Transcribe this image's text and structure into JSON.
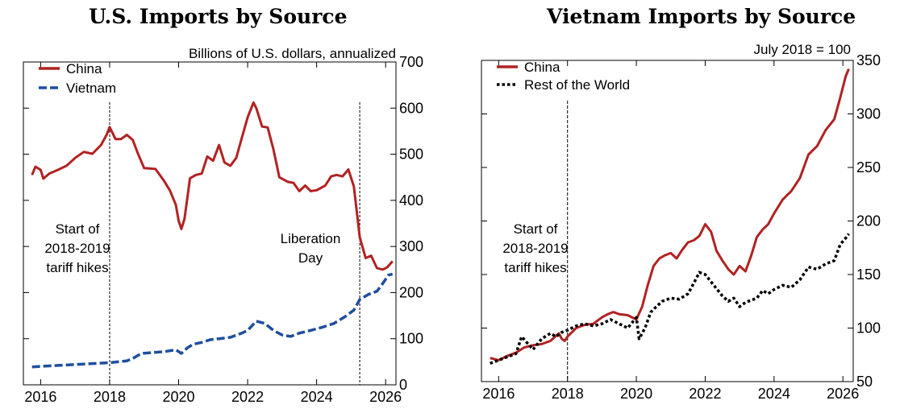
{
  "charts": {
    "left": {
      "title": "U.S. Imports by Source",
      "unit_label": "Billions of U.S. dollars, annualized",
      "legend": [
        {
          "label": "China",
          "color": "#b22222",
          "style": "solid"
        },
        {
          "label": "Vietnam",
          "color": "#1f4e9e",
          "style": "dashed"
        }
      ],
      "annotations": {
        "tariff_hikes": [
          "Start of",
          "2018-2019",
          "tariff hikes"
        ],
        "liberation_day": [
          "Liberation",
          "Day"
        ]
      }
    },
    "right": {
      "title": "Vietnam Imports by Source",
      "unit_label": "July 2018 = 100",
      "legend": [
        {
          "label": "China",
          "color": "#b22222",
          "style": "solid"
        },
        {
          "label": "Rest of the World",
          "color": "#000000",
          "style": "dotted"
        }
      ],
      "annotations": {
        "tariff_hikes": [
          "Start of",
          "2018-2019",
          "tariff hikes"
        ]
      }
    }
  },
  "chart_data": [
    {
      "type": "line",
      "title": "U.S. Imports by Source",
      "ylabel": "Billions of U.S. dollars, annualized",
      "xlim": [
        2015.5,
        2026.3
      ],
      "ylim": [
        0,
        700
      ],
      "x_ticks": [
        2016,
        2018,
        2020,
        2022,
        2024,
        2026
      ],
      "y_ticks": [
        0,
        100,
        200,
        300,
        400,
        500,
        600,
        700
      ],
      "y_axis_side": "right",
      "legend_position": "top-left",
      "grid": false,
      "vlines": [
        2018.0,
        2025.25
      ],
      "series": [
        {
          "name": "China",
          "color": "#b22222",
          "style": "solid",
          "points": [
            [
              2015.75,
              455
            ],
            [
              2015.85,
              473
            ],
            [
              2016.0,
              466
            ],
            [
              2016.08,
              447
            ],
            [
              2016.25,
              458
            ],
            [
              2016.5,
              466
            ],
            [
              2016.75,
              475
            ],
            [
              2017.0,
              492
            ],
            [
              2017.25,
              505
            ],
            [
              2017.5,
              501
            ],
            [
              2017.75,
              520
            ],
            [
              2017.92,
              543
            ],
            [
              2018.0,
              559
            ],
            [
              2018.17,
              533
            ],
            [
              2018.33,
              533
            ],
            [
              2018.5,
              542
            ],
            [
              2018.67,
              531
            ],
            [
              2018.83,
              500
            ],
            [
              2019.0,
              470
            ],
            [
              2019.33,
              468
            ],
            [
              2019.58,
              442
            ],
            [
              2019.75,
              421
            ],
            [
              2019.92,
              390
            ],
            [
              2020.0,
              356
            ],
            [
              2020.08,
              338
            ],
            [
              2020.17,
              360
            ],
            [
              2020.33,
              448
            ],
            [
              2020.5,
              455
            ],
            [
              2020.67,
              458
            ],
            [
              2020.83,
              495
            ],
            [
              2021.0,
              486
            ],
            [
              2021.17,
              520
            ],
            [
              2021.33,
              482
            ],
            [
              2021.5,
              475
            ],
            [
              2021.67,
              492
            ],
            [
              2021.83,
              535
            ],
            [
              2022.0,
              580
            ],
            [
              2022.17,
              612
            ],
            [
              2022.25,
              600
            ],
            [
              2022.42,
              560
            ],
            [
              2022.58,
              558
            ],
            [
              2022.75,
              510
            ],
            [
              2022.92,
              450
            ],
            [
              2023.17,
              440
            ],
            [
              2023.33,
              438
            ],
            [
              2023.5,
              420
            ],
            [
              2023.67,
              432
            ],
            [
              2023.83,
              420
            ],
            [
              2024.0,
              422
            ],
            [
              2024.25,
              432
            ],
            [
              2024.42,
              452
            ],
            [
              2024.58,
              455
            ],
            [
              2024.75,
              452
            ],
            [
              2024.92,
              467
            ],
            [
              2025.08,
              430
            ],
            [
              2025.25,
              320
            ],
            [
              2025.42,
              275
            ],
            [
              2025.58,
              280
            ],
            [
              2025.75,
              253
            ],
            [
              2025.92,
              250
            ],
            [
              2026.05,
              255
            ],
            [
              2026.2,
              268
            ]
          ]
        },
        {
          "name": "Vietnam",
          "color": "#1f4e9e",
          "style": "dashed",
          "points": [
            [
              2015.75,
              39
            ],
            [
              2016.0,
              40
            ],
            [
              2016.5,
              42
            ],
            [
              2017.0,
              44
            ],
            [
              2017.5,
              46
            ],
            [
              2018.0,
              48
            ],
            [
              2018.5,
              52
            ],
            [
              2018.67,
              57
            ],
            [
              2018.92,
              68
            ],
            [
              2019.25,
              70
            ],
            [
              2019.58,
              72
            ],
            [
              2019.92,
              76
            ],
            [
              2020.08,
              68
            ],
            [
              2020.25,
              80
            ],
            [
              2020.42,
              88
            ],
            [
              2020.67,
              92
            ],
            [
              2020.92,
              98
            ],
            [
              2021.17,
              100
            ],
            [
              2021.5,
              103
            ],
            [
              2021.83,
              112
            ],
            [
              2022.0,
              118
            ],
            [
              2022.25,
              138
            ],
            [
              2022.5,
              133
            ],
            [
              2022.75,
              118
            ],
            [
              2023.0,
              108
            ],
            [
              2023.25,
              105
            ],
            [
              2023.5,
              112
            ],
            [
              2023.83,
              118
            ],
            [
              2024.17,
              125
            ],
            [
              2024.5,
              133
            ],
            [
              2024.83,
              148
            ],
            [
              2025.08,
              162
            ],
            [
              2025.25,
              185
            ],
            [
              2025.5,
              196
            ],
            [
              2025.75,
              203
            ],
            [
              2025.92,
              220
            ],
            [
              2026.08,
              238
            ],
            [
              2026.2,
              240
            ]
          ]
        }
      ]
    },
    {
      "type": "line",
      "title": "Vietnam Imports by Source",
      "ylabel": "July 2018 = 100",
      "xlim": [
        2015.5,
        2026.3
      ],
      "ylim": [
        50,
        350
      ],
      "x_ticks": [
        2016,
        2018,
        2020,
        2022,
        2024,
        2026
      ],
      "y_ticks": [
        50,
        100,
        150,
        200,
        250,
        300,
        350
      ],
      "y_axis_side": "right",
      "legend_position": "top-left",
      "grid": false,
      "vlines": [
        2018.0
      ],
      "series": [
        {
          "name": "China",
          "color": "#b22222",
          "style": "solid",
          "points": [
            [
              2015.75,
              72
            ],
            [
              2016.0,
              70
            ],
            [
              2016.25,
              74
            ],
            [
              2016.5,
              77
            ],
            [
              2016.75,
              82
            ],
            [
              2017.0,
              84
            ],
            [
              2017.25,
              85
            ],
            [
              2017.5,
              88
            ],
            [
              2017.75,
              95
            ],
            [
              2017.83,
              90
            ],
            [
              2017.92,
              88
            ],
            [
              2018.0,
              92
            ],
            [
              2018.25,
              100
            ],
            [
              2018.5,
              103
            ],
            [
              2018.75,
              104
            ],
            [
              2019.0,
              110
            ],
            [
              2019.17,
              113
            ],
            [
              2019.33,
              115
            ],
            [
              2019.5,
              113
            ],
            [
              2019.75,
              112
            ],
            [
              2020.0,
              108
            ],
            [
              2020.17,
              120
            ],
            [
              2020.33,
              140
            ],
            [
              2020.5,
              158
            ],
            [
              2020.67,
              165
            ],
            [
              2020.83,
              168
            ],
            [
              2021.0,
              170
            ],
            [
              2021.17,
              165
            ],
            [
              2021.33,
              173
            ],
            [
              2021.5,
              180
            ],
            [
              2021.67,
              182
            ],
            [
              2021.83,
              186
            ],
            [
              2022.0,
              197
            ],
            [
              2022.17,
              190
            ],
            [
              2022.33,
              172
            ],
            [
              2022.5,
              163
            ],
            [
              2022.67,
              155
            ],
            [
              2022.83,
              150
            ],
            [
              2023.0,
              158
            ],
            [
              2023.17,
              153
            ],
            [
              2023.33,
              167
            ],
            [
              2023.5,
              185
            ],
            [
              2023.67,
              192
            ],
            [
              2023.83,
              197
            ],
            [
              2024.0,
              207
            ],
            [
              2024.25,
              220
            ],
            [
              2024.5,
              228
            ],
            [
              2024.75,
              240
            ],
            [
              2025.0,
              262
            ],
            [
              2025.25,
              270
            ],
            [
              2025.5,
              285
            ],
            [
              2025.75,
              295
            ],
            [
              2025.92,
              315
            ],
            [
              2026.08,
              335
            ],
            [
              2026.17,
              342
            ]
          ]
        },
        {
          "name": "Rest of the World",
          "color": "#000000",
          "style": "dotted",
          "points": [
            [
              2015.75,
              67
            ],
            [
              2016.0,
              70
            ],
            [
              2016.25,
              73
            ],
            [
              2016.5,
              76
            ],
            [
              2016.67,
              92
            ],
            [
              2016.83,
              86
            ],
            [
              2017.0,
              80
            ],
            [
              2017.25,
              90
            ],
            [
              2017.5,
              95
            ],
            [
              2017.67,
              92
            ],
            [
              2017.83,
              96
            ],
            [
              2018.0,
              98
            ],
            [
              2018.25,
              102
            ],
            [
              2018.5,
              104
            ],
            [
              2018.75,
              102
            ],
            [
              2019.0,
              104
            ],
            [
              2019.25,
              108
            ],
            [
              2019.5,
              104
            ],
            [
              2019.75,
              100
            ],
            [
              2020.0,
              110
            ],
            [
              2020.08,
              90
            ],
            [
              2020.25,
              100
            ],
            [
              2020.42,
              115
            ],
            [
              2020.58,
              120
            ],
            [
              2020.75,
              125
            ],
            [
              2021.0,
              128
            ],
            [
              2021.25,
              127
            ],
            [
              2021.5,
              132
            ],
            [
              2021.67,
              142
            ],
            [
              2021.83,
              152
            ],
            [
              2022.0,
              150
            ],
            [
              2022.25,
              140
            ],
            [
              2022.5,
              130
            ],
            [
              2022.67,
              125
            ],
            [
              2022.83,
              128
            ],
            [
              2023.0,
              120
            ],
            [
              2023.17,
              124
            ],
            [
              2023.5,
              128
            ],
            [
              2023.67,
              135
            ],
            [
              2023.83,
              132
            ],
            [
              2024.0,
              136
            ],
            [
              2024.25,
              140
            ],
            [
              2024.5,
              138
            ],
            [
              2024.75,
              145
            ],
            [
              2025.0,
              157
            ],
            [
              2025.25,
              155
            ],
            [
              2025.5,
              160
            ],
            [
              2025.75,
              163
            ],
            [
              2025.92,
              178
            ],
            [
              2026.08,
              184
            ],
            [
              2026.17,
              188
            ]
          ]
        }
      ]
    }
  ]
}
